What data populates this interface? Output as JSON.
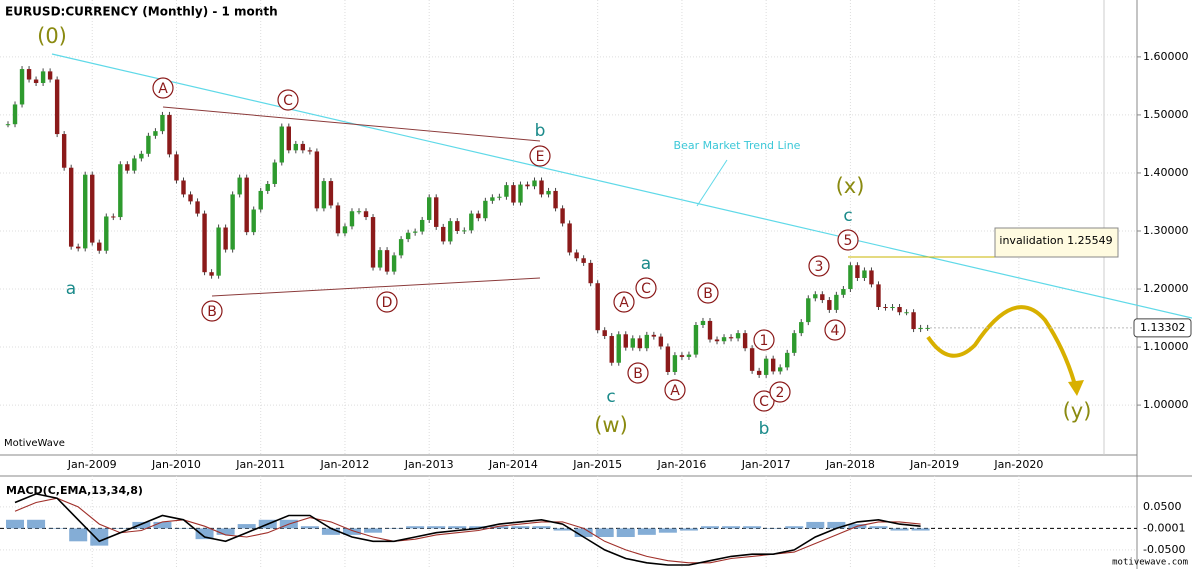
{
  "chart_data": {
    "type": "candlestick",
    "title": "EURUSD:CURRENCY (Monthly) - 1 month",
    "closes": [
      1.484,
      1.518,
      1.579,
      1.561,
      1.555,
      1.575,
      1.561,
      1.467,
      1.409,
      1.273,
      1.27,
      1.397,
      1.28,
      1.266,
      1.325,
      1.324,
      1.415,
      1.404,
      1.425,
      1.433,
      1.464,
      1.472,
      1.5,
      1.432,
      1.387,
      1.363,
      1.351,
      1.33,
      1.229,
      1.223,
      1.306,
      1.268,
      1.363,
      1.392,
      1.298,
      1.337,
      1.369,
      1.381,
      1.418,
      1.48,
      1.439,
      1.45,
      1.439,
      1.437,
      1.339,
      1.386,
      1.344,
      1.296,
      1.308,
      1.334,
      1.334,
      1.324,
      1.237,
      1.267,
      1.23,
      1.258,
      1.286,
      1.297,
      1.299,
      1.319,
      1.358,
      1.307,
      1.282,
      1.317,
      1.3,
      1.301,
      1.33,
      1.322,
      1.352,
      1.358,
      1.359,
      1.379,
      1.349,
      1.38,
      1.377,
      1.387,
      1.363,
      1.369,
      1.339,
      1.313,
      1.263,
      1.253,
      1.245,
      1.21,
      1.129,
      1.119,
      1.073,
      1.122,
      1.099,
      1.115,
      1.098,
      1.121,
      1.118,
      1.101,
      1.057,
      1.086,
      1.083,
      1.087,
      1.138,
      1.145,
      1.113,
      1.11,
      1.117,
      1.115,
      1.124,
      1.098,
      1.059,
      1.052,
      1.08,
      1.058,
      1.065,
      1.09,
      1.124,
      1.143,
      1.184,
      1.191,
      1.181,
      1.164,
      1.19,
      1.2,
      1.241,
      1.219,
      1.232,
      1.208,
      1.169,
      1.168,
      1.169,
      1.16,
      1.16,
      1.131,
      1.133,
      1.133
    ],
    "color_up": "#2e9a2e",
    "color_down": "#8b1a1a",
    "ylim": [
      0.914,
      1.698
    ],
    "yticks": [
      {
        "value": 1.0,
        "label": "1.00000"
      },
      {
        "value": 1.1,
        "label": "1.10000"
      },
      {
        "value": 1.2,
        "label": "1.20000"
      },
      {
        "value": 1.3,
        "label": "1.30000"
      },
      {
        "value": 1.4,
        "label": "1.40000"
      },
      {
        "value": 1.5,
        "label": "1.50000"
      },
      {
        "value": 1.6,
        "label": "1.60000"
      }
    ],
    "xtick_labels": [
      "Jan-2009",
      "Jan-2010",
      "Jan-2011",
      "Jan-2012",
      "Jan-2013",
      "Jan-2014",
      "Jan-2015",
      "Jan-2016",
      "Jan-2017",
      "Jan-2018",
      "Jan-2019",
      "Jan-2020"
    ],
    "last_price": 1.13302,
    "annotations": [
      "(0)",
      "a",
      "A",
      "B",
      "C",
      "D",
      "E",
      "b",
      "a",
      "A",
      "C",
      "B",
      "c",
      "(w)",
      "A",
      "B",
      "1",
      "C",
      "2",
      "b",
      "3",
      "4",
      "5",
      "c",
      "(x)",
      "(y)",
      "Bear Market Trend Line",
      "invalidation 1.25549"
    ],
    "watermark": "MotiveWave",
    "macd": {
      "title": "MACD(C,EMA,13,34,8)",
      "ylim": [
        -0.085,
        0.117
      ],
      "yticks": [
        {
          "value": 0.05,
          "label": "0.0500"
        },
        {
          "value": -0.0001,
          "label": "-0.0001"
        },
        {
          "value": -0.05,
          "label": "-0.0500"
        }
      ],
      "macd_color": "#000000",
      "signal_color": "#a0302a",
      "histogram_color": "#6f9fcf",
      "macd": [
        0.06,
        0.08,
        0.07,
        0.02,
        -0.03,
        -0.01,
        0.01,
        0.03,
        0.02,
        -0.02,
        -0.03,
        -0.01,
        0.01,
        0.03,
        0.03,
        0.0,
        -0.02,
        -0.03,
        -0.03,
        -0.02,
        -0.01,
        -0.005,
        0.0,
        0.01,
        0.015,
        0.02,
        0.01,
        -0.02,
        -0.05,
        -0.07,
        -0.08,
        -0.085,
        -0.085,
        -0.075,
        -0.065,
        -0.06,
        -0.06,
        -0.05,
        -0.02,
        0.0,
        0.015,
        0.02,
        0.01,
        0.005
      ],
      "signal": [
        0.04,
        0.06,
        0.07,
        0.05,
        0.01,
        -0.01,
        -0.005,
        0.015,
        0.02,
        0.005,
        -0.015,
        -0.02,
        -0.01,
        0.01,
        0.025,
        0.015,
        -0.005,
        -0.02,
        -0.03,
        -0.025,
        -0.015,
        -0.01,
        -0.005,
        0.005,
        0.01,
        0.015,
        0.015,
        0.0,
        -0.03,
        -0.05,
        -0.065,
        -0.075,
        -0.08,
        -0.08,
        -0.07,
        -0.065,
        -0.06,
        -0.055,
        -0.035,
        -0.015,
        0.005,
        0.015,
        0.015,
        0.01
      ],
      "histogram": [
        0.02,
        0.02,
        0,
        -0.03,
        -0.04,
        0,
        0.015,
        0.015,
        0,
        -0.025,
        -0.015,
        0.01,
        0.02,
        0.02,
        0.005,
        -0.015,
        -0.015,
        -0.01,
        0,
        0.005,
        0.005,
        0.005,
        0.005,
        0.005,
        0.005,
        0.005,
        -0.005,
        -0.02,
        -0.02,
        -0.02,
        -0.015,
        -0.01,
        -0.005,
        0.005,
        0.005,
        0.005,
        0,
        0.005,
        0.015,
        0.015,
        0.01,
        0.005,
        -0.005,
        -0.005
      ]
    },
    "footer": "motivewave.com"
  }
}
